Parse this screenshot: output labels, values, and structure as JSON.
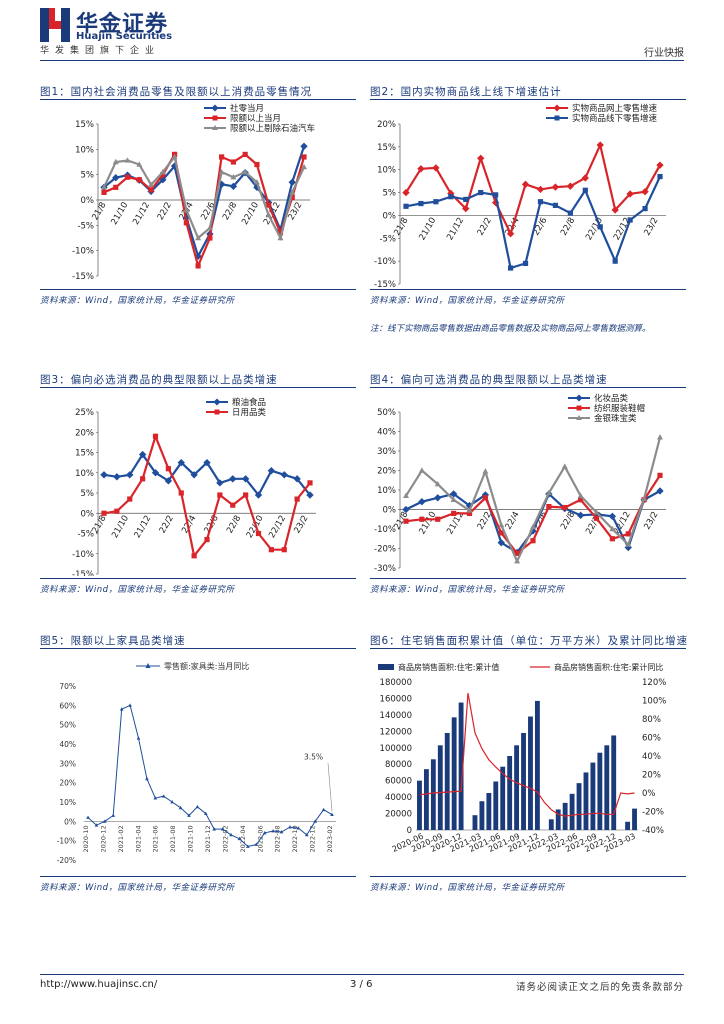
{
  "header": {
    "brand_cn": "华金证券",
    "brand_en": "Huajin Securities",
    "subline": "华发集团旗下企业",
    "doc_type": "行业快报"
  },
  "colors": {
    "navy": "#1a3a7a",
    "blue": "#1f4e9c",
    "red": "#d9252a",
    "gray": "#8c8c8c",
    "logo_red": "#d9252a"
  },
  "charts": [
    {
      "title": "图1：国内社会消费品零售及限额以上消费品零售情况",
      "source": "资料来源：Wind，国家统计局，华金证券研究所",
      "chart_data": {
        "type": "line",
        "legend": [
          "社零当月",
          "限额以上当月",
          "限额以上剔除石油汽车"
        ],
        "y_ticks": [
          "15%",
          "10%",
          "5%",
          "0%",
          "-5%",
          "-10%",
          "-15%"
        ],
        "ylim": [
          -15,
          15
        ],
        "x_ticks": [
          "21/8",
          "21/10",
          "21/12",
          "22/2",
          "22/4",
          "22/6",
          "22/8",
          "22/10",
          "22/12",
          "23/2"
        ],
        "series": [
          {
            "name": "社零当月",
            "color": "blue",
            "values": [
              2.5,
              4.4,
              4.9,
              3.9,
              1.7,
              4.0,
              6.7,
              -3.5,
              -11.1,
              -6.7,
              3.1,
              2.7,
              5.4,
              2.5,
              -0.5,
              -5.9,
              3.5,
              10.6
            ]
          },
          {
            "name": "限额以上当月",
            "color": "red",
            "values": [
              1.5,
              2.5,
              4.5,
              4.0,
              2.0,
              5.0,
              9.0,
              -4.5,
              -13.0,
              -7.5,
              8.5,
              7.5,
              9.0,
              7.0,
              -1.0,
              -6.5,
              0.5,
              8.5
            ]
          },
          {
            "name": "限额以上剔除石油汽车",
            "color": "gray",
            "values": [
              2.5,
              7.5,
              7.8,
              7.0,
              3.0,
              5.5,
              8.5,
              -2.0,
              -7.5,
              -5.5,
              5.5,
              4.5,
              5.5,
              3.5,
              -3.0,
              -7.5,
              1.5,
              6.5
            ]
          }
        ]
      }
    },
    {
      "title": "图2：国内实物商品线上线下增速估计",
      "source": "资料来源：Wind，国家统计局，华金证券研究所",
      "note": "注：线下实物商品零售数据由商品零售数据及实物商品网上零售数据测算。",
      "chart_data": {
        "type": "line",
        "legend": [
          "实物商品网上零售增速",
          "实物商品线下零售增速"
        ],
        "y_ticks": [
          "20%",
          "15%",
          "10%",
          "5%",
          "0%",
          "-5%",
          "-10%",
          "-15%"
        ],
        "ylim": [
          -15,
          20
        ],
        "x_ticks": [
          "21/8",
          "21/10",
          "21/12",
          "22/2",
          "22/4",
          "22/6",
          "22/8",
          "22/10",
          "22/12",
          "23/2"
        ],
        "series": [
          {
            "name": "实物商品网上零售增速",
            "color": "red",
            "values": [
              5.0,
              10.2,
              10.4,
              4.8,
              1.5,
              12.5,
              2.8,
              -4.0,
              6.8,
              5.7,
              6.2,
              6.4,
              8.2,
              15.4,
              1.2,
              4.7,
              5.2,
              11.0
            ]
          },
          {
            "name": "实物商品线下零售增速",
            "color": "blue",
            "values": [
              2.0,
              2.6,
              3.0,
              4.1,
              3.5,
              5.0,
              4.5,
              -11.5,
              -10.5,
              3.0,
              2.2,
              0.5,
              5.5,
              -2.5,
              -10.0,
              -1.0,
              1.5,
              8.5
            ]
          }
        ]
      }
    },
    {
      "title": "图3：偏向必选消费品的典型限额以上品类增速",
      "source": "资料来源：Wind，国家统计局，华金证券研究所",
      "chart_data": {
        "type": "line",
        "legend": [
          "粮油食品",
          "日用品类"
        ],
        "y_ticks": [
          "25%",
          "20%",
          "15%",
          "10%",
          "5%",
          "0%",
          "-5%",
          "-10%",
          "-15%"
        ],
        "ylim": [
          -15,
          25
        ],
        "x_ticks": [
          "21/8",
          "21/10",
          "21/12",
          "22/2",
          "22/4",
          "22/6",
          "22/8",
          "22/10",
          "22/12",
          "23/2"
        ],
        "series": [
          {
            "name": "粮油食品",
            "color": "blue",
            "values": [
              9.5,
              9.0,
              9.5,
              14.5,
              10.0,
              8.0,
              12.5,
              9.5,
              12.5,
              7.5,
              8.5,
              8.5,
              4.5,
              10.5,
              9.5,
              8.5,
              4.5
            ]
          },
          {
            "name": "日用品类",
            "color": "red",
            "values": [
              0.0,
              0.5,
              3.5,
              8.5,
              19.0,
              11.0,
              5.0,
              -10.5,
              -6.5,
              4.5,
              2.0,
              4.5,
              -5.0,
              -9.0,
              -9.0,
              3.5,
              7.5
            ]
          }
        ]
      }
    },
    {
      "title": "图4：偏向可选消费品的典型限额以上品类增速",
      "source": "资料来源：Wind，国家统计局，华金证券研究所",
      "chart_data": {
        "type": "line",
        "legend": [
          "化妆品类",
          "纺织服装鞋帽",
          "金银珠宝类"
        ],
        "y_ticks": [
          "50%",
          "40%",
          "30%",
          "20%",
          "10%",
          "0%",
          "-10%",
          "-20%",
          "-30%"
        ],
        "ylim": [
          -30,
          50
        ],
        "x_ticks": [
          "21/8",
          "21/10",
          "21/12",
          "22/2",
          "22/4",
          "22/6",
          "22/8",
          "22/10",
          "22/12",
          "23/2"
        ],
        "series": [
          {
            "name": "化妆品类",
            "color": "blue",
            "values": [
              0.0,
              4.0,
              6.0,
              8.0,
              2.0,
              7.5,
              -17.0,
              -22.0,
              -11.0,
              8.0,
              0.5,
              -3.0,
              -2.5,
              -3.5,
              -19.5,
              5.0,
              9.5
            ]
          },
          {
            "name": "纺织服装鞋帽",
            "color": "red",
            "values": [
              -6.0,
              -5.0,
              -5.0,
              -2.0,
              -2.0,
              6.0,
              -12.0,
              -22.5,
              -16.0,
              1.5,
              1.0,
              5.0,
              -4.5,
              -15.0,
              -12.5,
              5.0,
              17.5
            ]
          },
          {
            "name": "金银珠宝类",
            "color": "gray",
            "values": [
              7.0,
              20.0,
              13.0,
              5.0,
              -0.5,
              19.5,
              -8.0,
              -26.5,
              -9.0,
              8.5,
              22.0,
              7.0,
              -1.5,
              -10.0,
              -18.0,
              5.5,
              37.0
            ]
          }
        ]
      }
    },
    {
      "title": "图5：限额以上家具品类增速",
      "source": "资料来源：Wind，国家统计局，华金证券研究所",
      "chart_data": {
        "type": "line",
        "legend": [
          "零售额:家具类:当月同比"
        ],
        "y_ticks": [
          "70%",
          "60%",
          "50%",
          "40%",
          "30%",
          "20%",
          "10%",
          "0%",
          "-10%",
          "-20%"
        ],
        "ylim": [
          -20,
          70
        ],
        "x_ticks": [
          "2020-10",
          "2020-12",
          "2021-02",
          "2021-04",
          "2021-06",
          "2021-08",
          "2021-10",
          "2021-12",
          "2022-02",
          "2022-04",
          "2022-06",
          "2022-08",
          "2022-10",
          "2022-12",
          "2023-02"
        ],
        "annotation": "3.5%",
        "series": [
          {
            "name": "零售额:家具类:当月同比",
            "color": "blue",
            "values": [
              2.0,
              -2.0,
              0.0,
              3.0,
              58.0,
              60.0,
              43.0,
              22.0,
              12.0,
              13.0,
              10.0,
              7.0,
              3.0,
              7.5,
              4.0,
              -4.0,
              -4.0,
              -7.0,
              -9.0,
              -13.0,
              -12.0,
              -6.0,
              -5.0,
              -5.5,
              -3.0,
              -3.5,
              -7.0,
              0.0,
              6.0,
              3.5
            ]
          }
        ]
      }
    },
    {
      "title": "图6：住宅销售面积累计值（单位：万平方米）及累计同比增速",
      "source": "资料来源：Wind，国家统计局，华金证券研究所",
      "chart_data": {
        "type": "bar",
        "legend": [
          "商品房销售面积:住宅:累计值",
          "商品房销售面积:住宅:累计同比"
        ],
        "y_ticks": [
          "180000",
          "160000",
          "140000",
          "120000",
          "100000",
          "80000",
          "60000",
          "40000",
          "20000",
          "0"
        ],
        "ylim": [
          0,
          180000
        ],
        "y2_ticks": [
          "120%",
          "100%",
          "80%",
          "60%",
          "40%",
          "20%",
          "0%",
          "-20%",
          "-40%"
        ],
        "y2lim": [
          -40,
          120
        ],
        "x_ticks": [
          "2020-06",
          "2020-09",
          "2020-12",
          "2021-03",
          "2021-06",
          "2021-09",
          "2021-12",
          "2022-03",
          "2022-06",
          "2022-09",
          "2022-12",
          "2023-03"
        ],
        "bars": [
          60000,
          74000,
          86000,
          103000,
          118000,
          137000,
          155000,
          0,
          18000,
          35000,
          45000,
          59000,
          77000,
          90000,
          103000,
          118000,
          138000,
          157000,
          0,
          13000,
          25000,
          33000,
          44000,
          57000,
          70000,
          82000,
          94000,
          103000,
          115000,
          0,
          10000,
          26000
        ],
        "line": [
          -2,
          -1,
          0,
          0.5,
          1,
          1.5,
          2,
          108,
          65,
          48,
          36,
          28,
          21,
          15,
          11,
          8,
          5,
          1,
          -10,
          -18,
          -23,
          -25,
          -24,
          -23,
          -23,
          -22,
          -22,
          -23,
          -23,
          0,
          -1,
          0
        ]
      }
    }
  ],
  "footer": {
    "url": "http://www.huajinsc.cn/",
    "page": "3 / 6",
    "disclaimer": "请务必阅读正文之后的免责条款部分"
  }
}
